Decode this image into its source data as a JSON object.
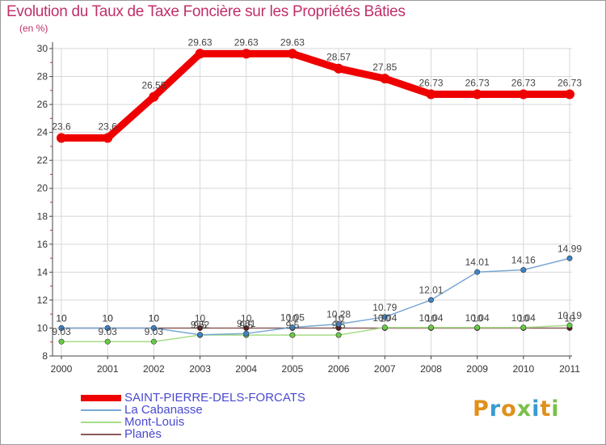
{
  "title": "Evolution du Taux de Taxe Foncière sur les Propriétés Bâties",
  "unit_label": "(en %)",
  "logo_text": "Proxiti",
  "colors": {
    "title": "#c0306a",
    "legend_text": "#4a4ad0",
    "grid": "#d7d7d7",
    "axis": "#444444"
  },
  "chart_data": {
    "type": "line",
    "title": "Evolution du Taux de Taxe Foncière sur les Propriétés Bâties",
    "xlabel": "",
    "ylabel": "(en %)",
    "ylim": [
      8,
      30
    ],
    "yticks": [
      8,
      10,
      12,
      14,
      16,
      18,
      20,
      22,
      24,
      26,
      28,
      30
    ],
    "grid": true,
    "categories": [
      "2000",
      "2001",
      "2002",
      "2003",
      "2004",
      "2005",
      "2006",
      "2007",
      "2008",
      "2009",
      "2010",
      "2011"
    ],
    "series": [
      {
        "name": "SAINT-PIERRE-DELS-FORCATS",
        "color": "#ee0000",
        "marker": "#ee0000",
        "values": [
          23.6,
          23.6,
          26.55,
          29.63,
          29.63,
          29.63,
          28.57,
          27.85,
          26.73,
          26.73,
          26.73,
          26.73
        ],
        "labels": [
          "23.6",
          "23.6",
          "26.55",
          "29.63",
          "29.63",
          "29.63",
          "28.57",
          "27.85",
          "26.73",
          "26.73",
          "26.73",
          "26.73"
        ]
      },
      {
        "name": "La Cabanasse",
        "color": "#7aa8d4",
        "marker": "#3f83c6",
        "values": [
          10,
          10,
          10,
          9.52,
          9.61,
          10.05,
          10.28,
          10.79,
          12.01,
          14.01,
          14.16,
          14.99
        ],
        "labels": [
          "10",
          "10",
          "10",
          "9.52",
          "9.61",
          "10.05",
          "10.28",
          "10.79",
          "12.01",
          "14.01",
          "14.16",
          "14.99"
        ]
      },
      {
        "name": "Mont-Louis",
        "color": "#a8dc88",
        "marker": "#66cc44",
        "values": [
          9.03,
          9.03,
          9.03,
          9.5,
          9.5,
          9.5,
          9.5,
          10.04,
          10.04,
          10.04,
          10.04,
          10.19
        ],
        "labels": [
          "9.03",
          "9.03",
          "9.03",
          "9.5",
          "9.5",
          "9.5",
          "9.5",
          "10.04",
          "10.04",
          "10.04",
          "10.04",
          "10.19"
        ]
      },
      {
        "name": "Planès",
        "color": "#8b5a5a",
        "marker": "#5a1a1a",
        "values": [
          10,
          10,
          10,
          10,
          10,
          10,
          10,
          10,
          10,
          10,
          10,
          10
        ],
        "labels": [
          "10",
          "10",
          "10",
          "10",
          "10",
          "10",
          "10",
          "10",
          "10",
          "10",
          "10",
          "10"
        ]
      }
    ]
  }
}
